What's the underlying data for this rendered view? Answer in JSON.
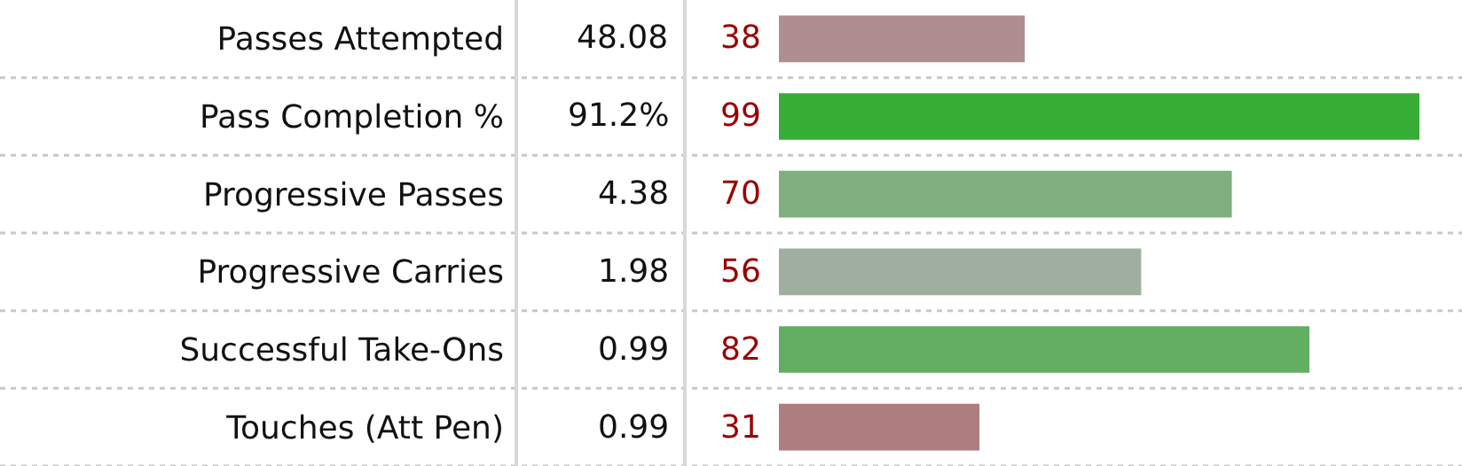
{
  "chart_data": {
    "type": "bar",
    "orientation": "horizontal",
    "categories": [
      "Passes Attempted",
      "Pass Completion %",
      "Progressive Passes",
      "Progressive Carries",
      "Successful Take-Ons",
      "Touches (Att Pen)"
    ],
    "values": [
      38,
      99,
      70,
      56,
      82,
      31
    ],
    "colors": [
      "#ae8e8e",
      "#36ae36",
      "#7fae7f",
      "#a0aea0",
      "#62ae62",
      "#ae7e7e"
    ],
    "data_labels": true,
    "annotations": [
      "48.08",
      "91.2%",
      "4.38",
      "1.98",
      "0.99",
      "0.99"
    ],
    "tick_labels": "y"
  }
}
